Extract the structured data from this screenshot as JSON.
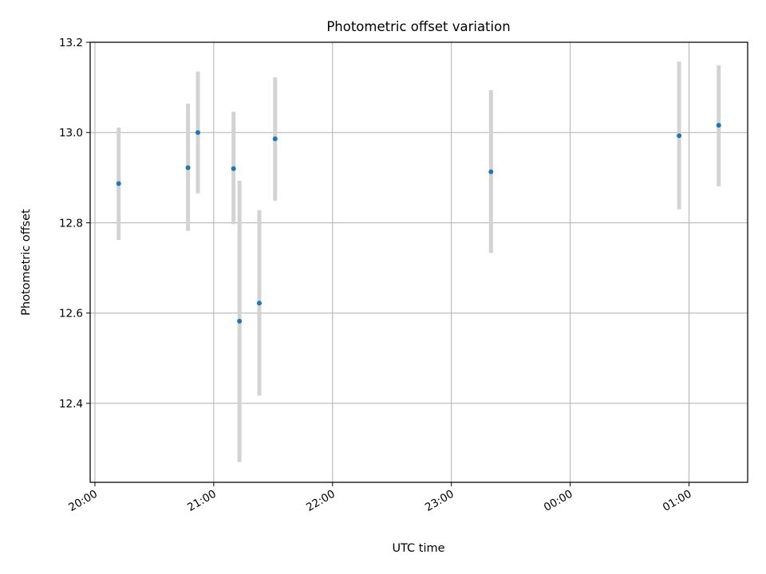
{
  "chart_data": {
    "type": "scatter",
    "title": "Photometric offset variation",
    "xlabel": "UTC time",
    "ylabel": "Photometric offset",
    "x_axis": "time",
    "xlim": [
      "20:00",
      "01:30"
    ],
    "ylim": [
      12.225,
      13.2
    ],
    "xticks": [
      "20:00",
      "21:00",
      "22:00",
      "23:00",
      "00:00",
      "01:00"
    ],
    "yticks": [
      12.4,
      12.6,
      12.8,
      13.0,
      13.2
    ],
    "grid": true,
    "series": [
      {
        "points": [
          {
            "x": "20:12",
            "y": 12.887,
            "err_low": 12.762,
            "err_high": 13.011
          },
          {
            "x": "20:47",
            "y": 12.922,
            "err_low": 12.782,
            "err_high": 13.064
          },
          {
            "x": "20:52",
            "y": 13.0,
            "err_low": 12.865,
            "err_high": 13.135
          },
          {
            "x": "21:10",
            "y": 12.92,
            "err_low": 12.797,
            "err_high": 13.046
          },
          {
            "x": "21:13",
            "y": 12.582,
            "err_low": 12.27,
            "err_high": 12.893
          },
          {
            "x": "21:23",
            "y": 12.622,
            "err_low": 12.417,
            "err_high": 12.828
          },
          {
            "x": "21:31",
            "y": 12.986,
            "err_low": 12.849,
            "err_high": 13.122
          },
          {
            "x": "23:20",
            "y": 12.913,
            "err_low": 12.733,
            "err_high": 13.094
          },
          {
            "x": "00:55",
            "y": 12.993,
            "err_low": 12.83,
            "err_high": 13.157
          },
          {
            "x": "01:15",
            "y": 13.016,
            "err_low": 12.881,
            "err_high": 13.149
          }
        ]
      }
    ],
    "colors": {
      "marker": "#1f77b4",
      "errorbar": "#d3d3d3",
      "grid": "#b0b0b0",
      "axes": "#000000"
    }
  }
}
